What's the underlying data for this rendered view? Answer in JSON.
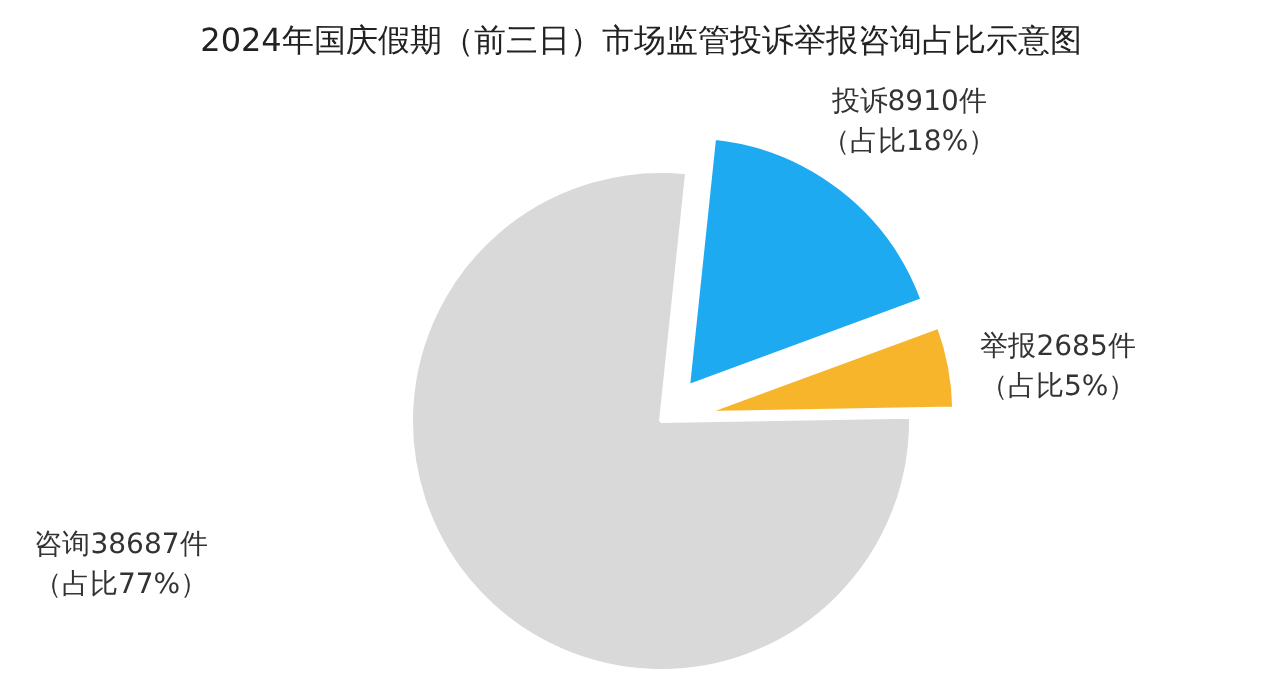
{
  "chart_data": {
    "type": "pie",
    "title": "2024年国庆假期（前三日）市场监管投诉举报咨询占比示意图",
    "categories": [
      "投诉",
      "举报",
      "咨询"
    ],
    "values": [
      8910,
      2685,
      38687
    ],
    "value_labels": [
      "8910件",
      "2685件",
      "38687件"
    ],
    "annotations": [
      "（占比18%）",
      "（占比5%）",
      "（占比77%）"
    ],
    "colors": [
      "#1eaaf0",
      "#f7b52c",
      "#d9d9d9"
    ]
  }
}
